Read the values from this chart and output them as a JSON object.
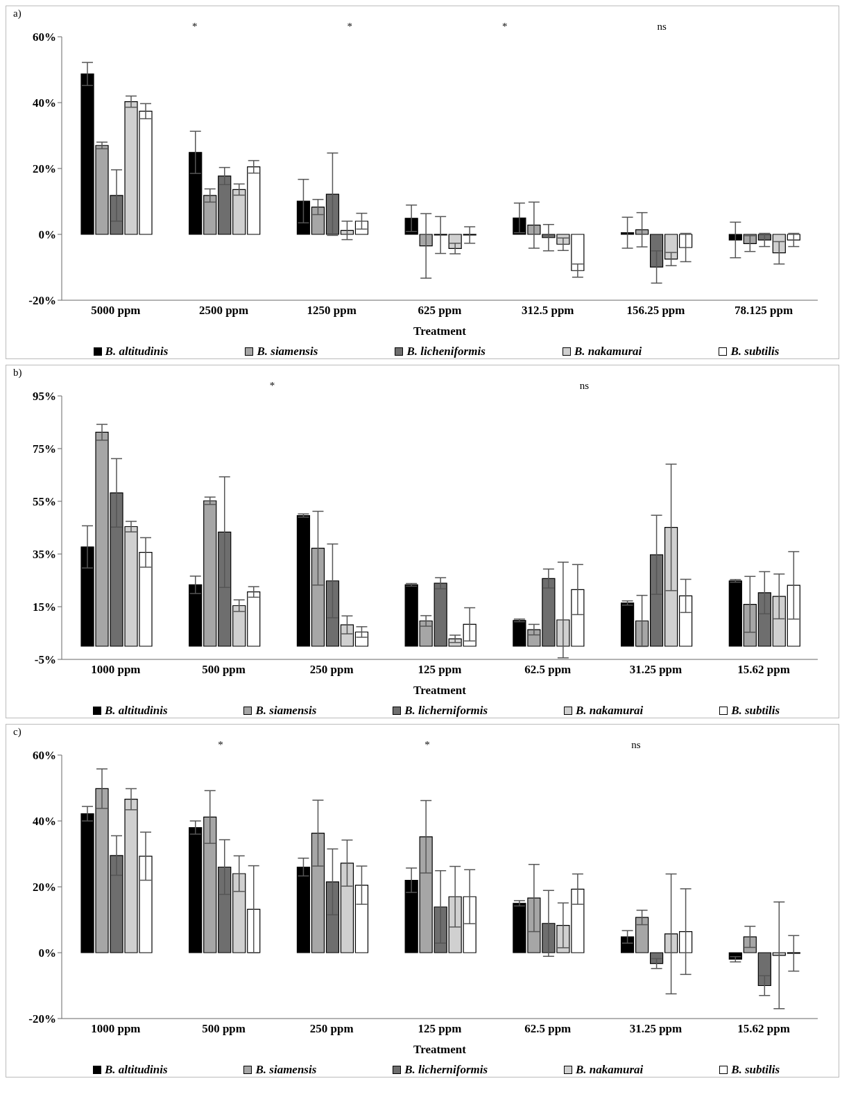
{
  "chart_data": [
    {
      "type": "bar",
      "title": "a)",
      "xlabel": "Treatment",
      "categories": [
        "5000 ppm",
        "2500 ppm",
        "1250 ppm",
        "625 ppm",
        "312.5 ppm",
        "156.25 ppm",
        "78.125 ppm"
      ],
      "ylim": [
        -20,
        60
      ],
      "yticks": [
        {
          "value": -20,
          "label": "-20%"
        },
        {
          "value": 0,
          "label": "0%"
        },
        {
          "value": 20,
          "label": "20%"
        },
        {
          "value": 40,
          "label": "40%"
        },
        {
          "value": 60,
          "label": "60%"
        }
      ],
      "grid": false,
      "legend": "bottom",
      "annotations": [
        "*",
        "*",
        "*",
        "ns"
      ],
      "series": [
        {
          "name": "B. altitudinis",
          "color": "#000000",
          "values": [
            48.7,
            24.9,
            10.1,
            4.9,
            5,
            0.5,
            -1.7
          ],
          "errors": [
            3.5,
            6.4,
            6.6,
            4,
            4.5,
            4.7,
            5.4
          ]
        },
        {
          "name": "B. siamensis",
          "color": "#a6a6a6",
          "values": [
            27,
            11.8,
            8.3,
            -3.5,
            2.8,
            1.4,
            -2.8
          ],
          "errors": [
            1,
            2,
            2.3,
            9.8,
            7,
            5.2,
            2.4
          ]
        },
        {
          "name": "B. licheniformis",
          "color": "#6e6e6e",
          "values": [
            11.8,
            17.7,
            12.2,
            -0.2,
            -1,
            -9.9,
            -1.7
          ],
          "errors": [
            7.8,
            2.6,
            12.5,
            5.6,
            4,
            4.9,
            2
          ]
        },
        {
          "name": "B. nakamurai",
          "color": "#d0d0d0",
          "values": [
            40.3,
            13.6,
            1.2,
            -4.3,
            -3,
            -7.5,
            -5.6
          ],
          "errors": [
            1.7,
            1.7,
            2.8,
            1.6,
            1.9,
            2,
            3.4
          ]
        },
        {
          "name": "B. subtilis",
          "color": "#ffffff",
          "values": [
            37.4,
            20.5,
            4,
            -0.2,
            -11,
            -4,
            -1.7
          ],
          "errors": [
            2.3,
            1.9,
            2.4,
            2.5,
            2,
            4.3,
            2
          ]
        }
      ]
    },
    {
      "type": "bar",
      "title": "b)",
      "xlabel": "Treatment",
      "categories": [
        "1000 ppm",
        "500 ppm",
        "250 ppm",
        "125 ppm",
        "62.5 ppm",
        "31.25 ppm",
        "15.62 ppm"
      ],
      "ylim": [
        -5,
        95
      ],
      "yticks": [
        {
          "value": -5,
          "label": "-5%"
        },
        {
          "value": 15,
          "label": "15%"
        },
        {
          "value": 35,
          "label": "35%"
        },
        {
          "value": 55,
          "label": "55%"
        },
        {
          "value": 75,
          "label": "75%"
        },
        {
          "value": 95,
          "label": "95%"
        }
      ],
      "grid": false,
      "legend": "bottom",
      "annotations": [
        "*",
        "ns"
      ],
      "series": [
        {
          "name": "B. altitudinis",
          "color": "#000000",
          "values": [
            37.7,
            23.3,
            49.6,
            23.3,
            9.8,
            16.4,
            24.8
          ],
          "errors": [
            8,
            3.3,
            0.6,
            0.5,
            0.5,
            0.8,
            0.5
          ]
        },
        {
          "name": "B. siamensis",
          "color": "#a6a6a6",
          "values": [
            81.2,
            55.2,
            37.2,
            9.6,
            6.3,
            9.6,
            15.9
          ],
          "errors": [
            3,
            1.4,
            14,
            2,
            2,
            9.7,
            10.6
          ]
        },
        {
          "name": "B. licherniformis",
          "color": "#6e6e6e",
          "values": [
            58.2,
            43.3,
            24.8,
            23.9,
            25.7,
            34.7,
            20.3
          ],
          "errors": [
            13,
            21,
            14,
            2.1,
            3.6,
            15,
            8
          ]
        },
        {
          "name": "B. nakamurai",
          "color": "#d0d0d0",
          "values": [
            45.4,
            15.4,
            8.1,
            2.8,
            10,
            45.1,
            18.9
          ],
          "errors": [
            2,
            2.2,
            3.4,
            1.4,
            [
              -4.4,
              31.9
            ],
            24,
            8.5
          ]
        },
        {
          "name": "B. subtilis",
          "color": "#ffffff",
          "values": [
            35.6,
            20.6,
            5.4,
            8.3,
            21.5,
            19.1,
            23.1
          ],
          "errors": [
            5.6,
            2,
            2,
            6.3,
            9.5,
            6.3,
            12.8
          ]
        }
      ]
    },
    {
      "type": "bar",
      "title": "c)",
      "xlabel": "Treatment",
      "categories": [
        "1000 ppm",
        "500 ppm",
        "250 ppm",
        "125 ppm",
        "62.5 ppm",
        "31.25 ppm",
        "15.62 ppm"
      ],
      "ylim": [
        -20,
        60
      ],
      "yticks": [
        {
          "value": -20,
          "label": "-20%"
        },
        {
          "value": 0,
          "label": "0%"
        },
        {
          "value": 20,
          "label": "20%"
        },
        {
          "value": 40,
          "label": "40%"
        },
        {
          "value": 60,
          "label": "60%"
        }
      ],
      "grid": false,
      "legend": "bottom",
      "annotations": [
        "*",
        "*",
        "ns"
      ],
      "series": [
        {
          "name": "B. altitudinis",
          "color": "#000000",
          "values": [
            42.2,
            38,
            26,
            22,
            15,
            4.8,
            -2
          ],
          "errors": [
            2.2,
            2,
            2.7,
            3.7,
            0.8,
            1.9,
            0.8
          ]
        },
        {
          "name": "B. siamensis",
          "color": "#a6a6a6",
          "values": [
            49.8,
            41.2,
            36.3,
            35.2,
            16.6,
            10.7,
            4.8
          ],
          "errors": [
            6,
            8,
            10,
            11,
            10.2,
            2.2,
            3.2
          ]
        },
        {
          "name": "B. licherniformis",
          "color": "#6e6e6e",
          "values": [
            29.5,
            26,
            21.5,
            13.9,
            8.9,
            -3.3,
            -10
          ],
          "errors": [
            6,
            8.3,
            10,
            11,
            10,
            1.5,
            3
          ]
        },
        {
          "name": "B. nakamurai",
          "color": "#d0d0d0",
          "values": [
            46.6,
            24,
            27.2,
            17,
            8.3,
            5.7,
            -0.8
          ],
          "errors": [
            3.2,
            5.4,
            7,
            9.2,
            6.8,
            18.2,
            16.2
          ]
        },
        {
          "name": "B. subtilis",
          "color": "#ffffff",
          "values": [
            29.3,
            13.2,
            20.5,
            17,
            19.3,
            6.4,
            -0.2
          ],
          "errors": [
            7.3,
            13.2,
            5.8,
            8.2,
            4.6,
            13,
            5.4
          ]
        }
      ]
    }
  ]
}
